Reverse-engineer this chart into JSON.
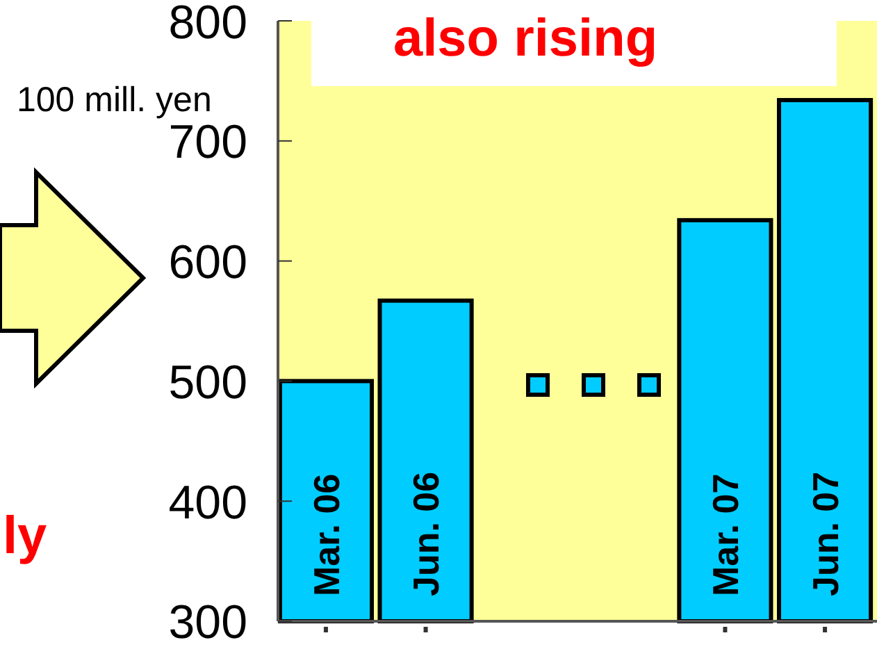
{
  "chart_data": {
    "type": "bar",
    "title": "also rising",
    "ylabel": "100 mill. yen",
    "categories": [
      "Mar. 06",
      "Jun. 06",
      null,
      null,
      "Mar. 07",
      "Jun. 07"
    ],
    "values": [
      500,
      567,
      null,
      null,
      634,
      734
    ],
    "color": "#00ccff",
    "ylim": [
      300,
      800
    ],
    "yticks": [
      300,
      400,
      500,
      600,
      700,
      800
    ],
    "grid": false,
    "annotations": [
      "ly"
    ]
  }
}
